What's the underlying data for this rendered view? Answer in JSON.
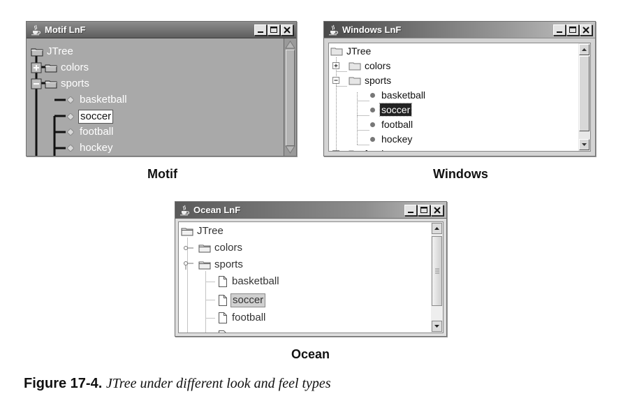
{
  "windows": {
    "motif": {
      "title": "Motif LnF",
      "tree": {
        "root": "JTree",
        "colors": "colors",
        "sports": "sports",
        "items": [
          "basketball",
          "soccer",
          "football",
          "hockey"
        ]
      },
      "caption": "Motif"
    },
    "windows": {
      "title": "Windows LnF",
      "tree": {
        "root": "JTree",
        "colors": "colors",
        "sports": "sports",
        "items": [
          "basketball",
          "soccer",
          "football",
          "hockey"
        ],
        "food": "food"
      },
      "caption": "Windows"
    },
    "ocean": {
      "title": "Ocean LnF",
      "tree": {
        "root": "JTree",
        "colors": "colors",
        "sports": "sports",
        "items": [
          "basketball",
          "soccer",
          "football"
        ]
      },
      "caption": "Ocean"
    }
  },
  "icons": {
    "java": "java-coffee-cup-icon",
    "minimize": "minimize-icon",
    "maximize": "maximize-icon",
    "close": "close-icon",
    "folder": "folder-icon",
    "leaf_motif": "diamond-leaf-icon",
    "leaf_windows": "bullet-leaf-icon",
    "leaf_ocean": "file-leaf-icon"
  },
  "selected_item": "soccer",
  "figure": {
    "number": "Figure 17-4.",
    "text": "JTree under different look and feel types"
  }
}
